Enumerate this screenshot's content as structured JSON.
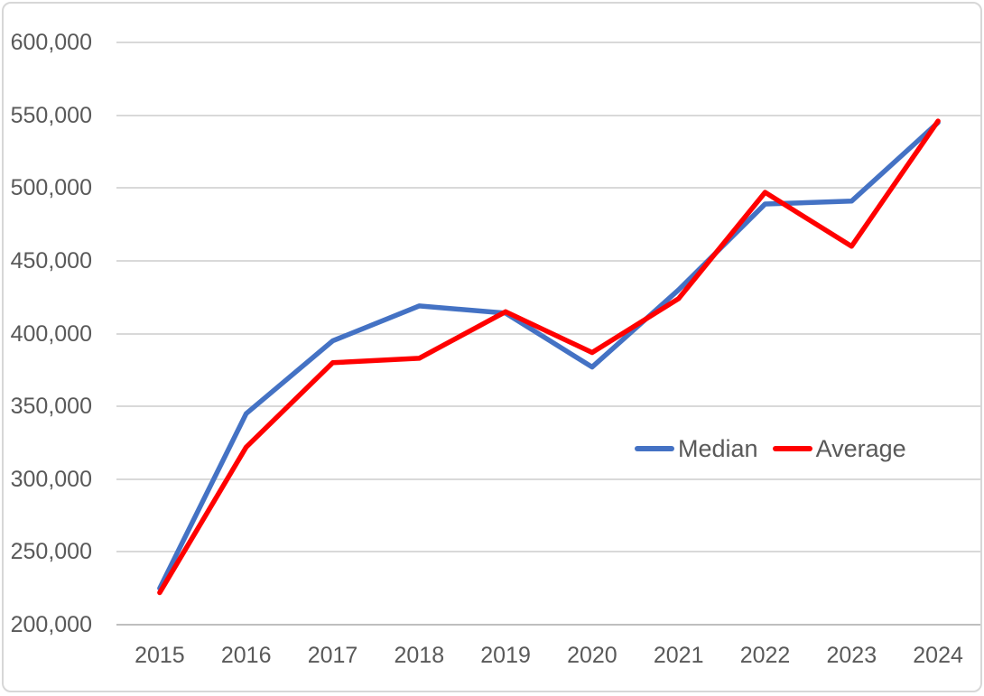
{
  "chart_data": {
    "type": "line",
    "title": "",
    "xlabel": "",
    "ylabel": "",
    "categories": [
      "2015",
      "2016",
      "2017",
      "2018",
      "2019",
      "2020",
      "2021",
      "2022",
      "2023",
      "2024"
    ],
    "series": [
      {
        "name": "Median",
        "color": "#4472C4",
        "values": [
          225000,
          345000,
          395000,
          419000,
          414000,
          377000,
          430000,
          489000,
          491000,
          545000
        ]
      },
      {
        "name": "Average",
        "color": "#FF0000",
        "values": [
          222000,
          322000,
          380000,
          383000,
          415000,
          387000,
          424000,
          497000,
          460000,
          546000
        ]
      }
    ],
    "ylim": [
      200000,
      600000
    ],
    "ytick_step": 50000,
    "ytick_labels_top_to_bottom": [
      "600,000",
      "550,000",
      "500,000",
      "450,000",
      "400,000",
      "350,000",
      "300,000",
      "250,000",
      "200,000"
    ],
    "grid": true,
    "legend_position": "inside-right",
    "legend_entries": [
      "Median",
      "Average"
    ]
  },
  "colors": {
    "grid": "#d9d9d9",
    "axis_line": "#bfbfbf",
    "tick_text": "#595959",
    "background": "#ffffff",
    "frame_border": "#d7d7d7"
  }
}
